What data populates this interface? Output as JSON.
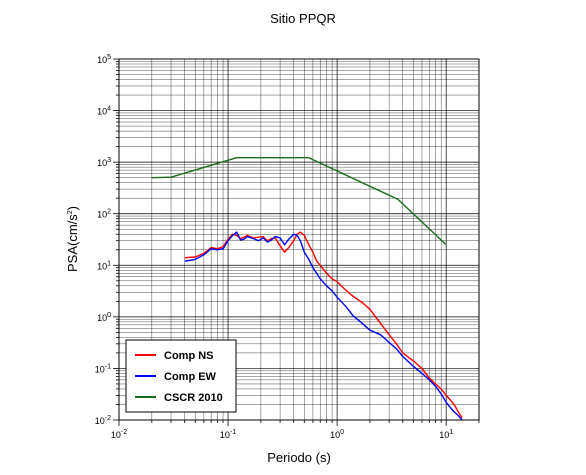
{
  "chart_data": {
    "type": "line",
    "title": "Sitio PPQR",
    "xlabel": "Periodo (s)",
    "ylabel_base": "PSA(cm/s",
    "ylabel_exp": "2",
    "ylabel_close": ")",
    "x_scale": "log",
    "y_scale": "log",
    "xlim": [
      0.01,
      20
    ],
    "ylim": [
      0.01,
      100000
    ],
    "grid": true,
    "legend_position": "bottom-left",
    "x_ticks": [
      {
        "value": 0.01,
        "base": "10",
        "exp": "-2"
      },
      {
        "value": 0.1,
        "base": "10",
        "exp": "-1"
      },
      {
        "value": 1,
        "base": "10",
        "exp": "0"
      },
      {
        "value": 10,
        "base": "10",
        "exp": "1"
      }
    ],
    "y_ticks": [
      {
        "value": 0.01,
        "base": "10",
        "exp": "-2"
      },
      {
        "value": 0.1,
        "base": "10",
        "exp": "-1"
      },
      {
        "value": 1,
        "base": "10",
        "exp": "0"
      },
      {
        "value": 10,
        "base": "10",
        "exp": "1"
      },
      {
        "value": 100,
        "base": "10",
        "exp": "2"
      },
      {
        "value": 1000,
        "base": "10",
        "exp": "3"
      },
      {
        "value": 10000,
        "base": "10",
        "exp": "4"
      },
      {
        "value": 100000,
        "base": "10",
        "exp": "5"
      }
    ],
    "series": [
      {
        "name": "Comp NS",
        "color": "#ff0000",
        "x": [
          0.04,
          0.05,
          0.06,
          0.07,
          0.08,
          0.09,
          0.1,
          0.11,
          0.12,
          0.13,
          0.14,
          0.15,
          0.17,
          0.19,
          0.21,
          0.23,
          0.25,
          0.27,
          0.3,
          0.33,
          0.36,
          0.4,
          0.43,
          0.46,
          0.5,
          0.55,
          0.6,
          0.65,
          0.7,
          0.8,
          0.9,
          1.0,
          1.2,
          1.4,
          1.7,
          2.0,
          2.5,
          3.0,
          3.5,
          4.0,
          5.0,
          6.0,
          7.0,
          8.0,
          9.0,
          10.0,
          11.0,
          12.0,
          13.0,
          14.0
        ],
        "y": [
          14,
          14.5,
          17,
          22,
          21,
          23,
          32,
          40,
          38,
          33,
          35,
          38,
          34,
          35,
          36,
          30,
          33,
          34,
          24,
          18,
          22,
          30,
          40,
          44,
          38,
          25,
          18,
          12,
          10,
          7,
          5.5,
          4.8,
          3.3,
          2.5,
          1.9,
          1.4,
          0.75,
          0.45,
          0.3,
          0.2,
          0.14,
          0.1,
          0.065,
          0.05,
          0.04,
          0.03,
          0.024,
          0.019,
          0.014,
          0.011
        ]
      },
      {
        "name": "Comp EW",
        "color": "#0000ff",
        "x": [
          0.04,
          0.05,
          0.06,
          0.07,
          0.08,
          0.09,
          0.1,
          0.11,
          0.12,
          0.13,
          0.14,
          0.15,
          0.17,
          0.19,
          0.21,
          0.23,
          0.25,
          0.27,
          0.3,
          0.33,
          0.36,
          0.4,
          0.43,
          0.46,
          0.5,
          0.55,
          0.6,
          0.65,
          0.7,
          0.8,
          0.9,
          1.0,
          1.2,
          1.4,
          1.7,
          2.0,
          2.5,
          3.0,
          3.5,
          4.0,
          5.0,
          6.0,
          7.0,
          8.0,
          9.0,
          10.0,
          11.0,
          12.0,
          13.0,
          14.0
        ],
        "y": [
          12,
          13,
          16,
          21,
          20,
          21,
          30,
          38,
          44,
          31,
          32,
          36,
          33,
          30,
          34,
          28,
          31,
          36,
          34,
          25,
          32,
          40,
          38,
          30,
          18,
          13,
          9,
          7,
          5.5,
          4,
          3.2,
          2.4,
          1.6,
          1.05,
          0.75,
          0.55,
          0.45,
          0.32,
          0.24,
          0.17,
          0.11,
          0.08,
          0.06,
          0.045,
          0.032,
          0.022,
          0.017,
          0.014,
          0.012,
          0.01
        ]
      },
      {
        "name": "CSCR 2010",
        "color": "#1a6b1a",
        "x": [
          0.02,
          0.03,
          0.12,
          0.55,
          3.6,
          10.0
        ],
        "y": [
          500,
          510,
          1220,
          1220,
          190,
          25
        ]
      }
    ]
  }
}
